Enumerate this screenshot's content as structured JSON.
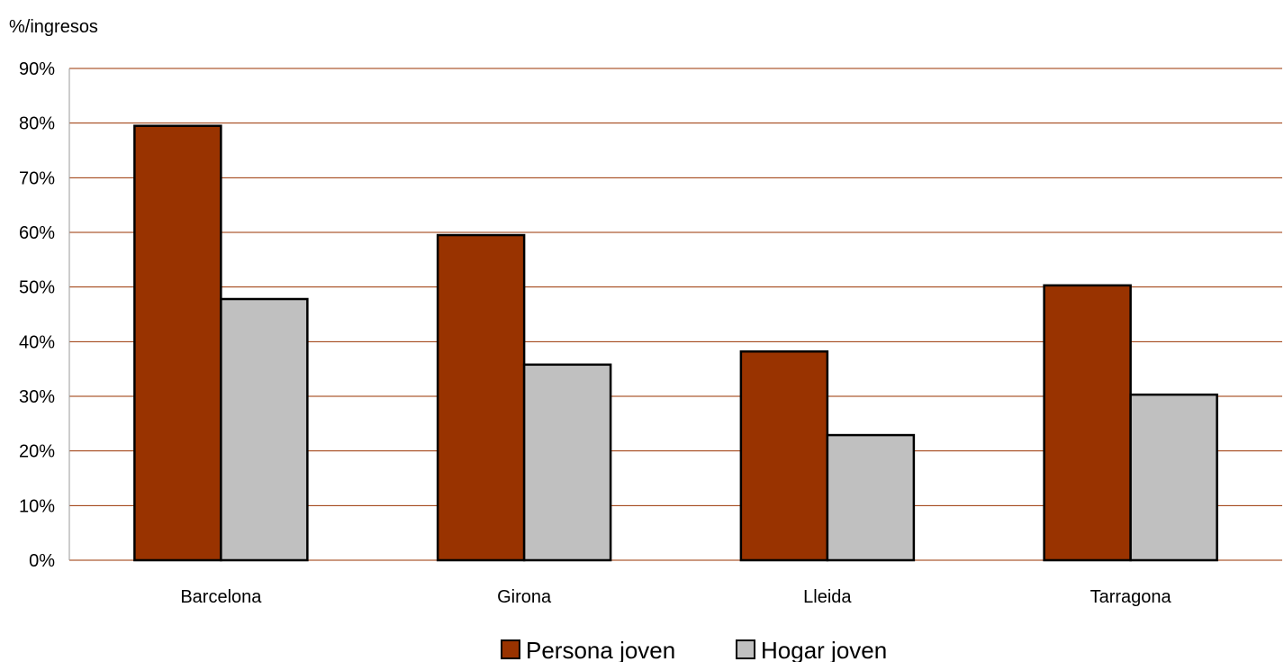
{
  "chart_data": {
    "type": "bar",
    "ylabel": "%/ingresos",
    "categories": [
      "Barcelona",
      "Girona",
      "Lleida",
      "Tarragona"
    ],
    "series": [
      {
        "name": "Persona joven",
        "values": [
          79.5,
          59.5,
          38.2,
          50.3
        ],
        "color": "#993300"
      },
      {
        "name": "Hogar joven",
        "values": [
          47.8,
          35.8,
          22.9,
          30.3
        ],
        "color": "#C0C0C0"
      }
    ],
    "ylim": [
      0,
      90
    ],
    "yticks": [
      0,
      10,
      20,
      30,
      40,
      50,
      60,
      70,
      80,
      90
    ],
    "ytick_labels": [
      "0%",
      "10%",
      "20%",
      "30%",
      "40%",
      "50%",
      "60%",
      "70%",
      "80%",
      "90%"
    ],
    "grid": true,
    "grid_color": "#993300",
    "legend_position": "bottom-center"
  }
}
